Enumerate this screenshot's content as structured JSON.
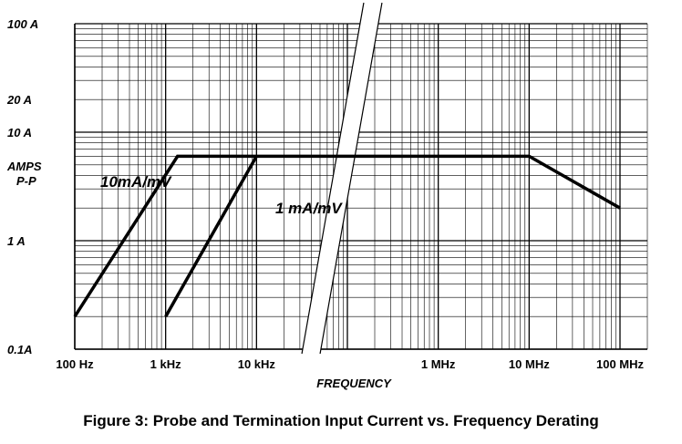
{
  "caption": "Figure 3:  Probe and Termination Input Current vs. Frequency Derating",
  "chart_data": {
    "type": "line",
    "x_scale": "log",
    "y_scale": "log",
    "xlabel": "FREQUENCY",
    "ylabel": [
      "AMPS",
      "P-P"
    ],
    "xlim": [
      100,
      100000000
    ],
    "ylim": [
      0.1,
      100
    ],
    "x_ticks": [
      {
        "value": 100,
        "label": "100 Hz"
      },
      {
        "value": 1000,
        "label": "1 kHz"
      },
      {
        "value": 10000,
        "label": "10 kHz"
      },
      {
        "value": 1000000,
        "label": "1 MHz"
      },
      {
        "value": 10000000,
        "label": "10 MHz"
      },
      {
        "value": 100000000,
        "label": "100 MHz"
      }
    ],
    "y_ticks": [
      {
        "value": 100,
        "label": "100 A"
      },
      {
        "value": 20,
        "label": "20 A"
      },
      {
        "value": 10,
        "label": "10 A"
      },
      {
        "value": 1,
        "label": "1 A"
      },
      {
        "value": 0.1,
        "label": "0.1A"
      }
    ],
    "axis_break": "between 10 kHz and 1 MHz",
    "grid": true,
    "series": [
      {
        "name": "10mA/mV",
        "points": [
          [
            100,
            0.2
          ],
          [
            1350,
            6
          ],
          [
            10000000,
            6
          ],
          [
            100000000,
            2
          ]
        ]
      },
      {
        "name": "1 mA/mV",
        "points": [
          [
            1000,
            0.2
          ],
          [
            10000,
            6
          ]
        ]
      }
    ]
  }
}
